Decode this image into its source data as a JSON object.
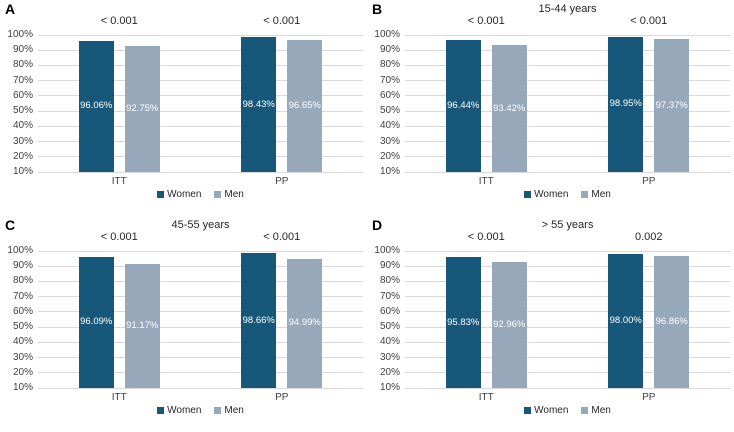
{
  "colors": {
    "women_bar": "#17587A",
    "men_bar": "#96A8BA",
    "gridline": "#D9D9D9",
    "axis_text": "#404040",
    "annotation_text": "#262626",
    "bar_label_text": "#FFFFFF",
    "panel_letter": "#000000"
  },
  "y_axis": {
    "tick_labels": [
      "100%",
      "90%",
      "80%",
      "70%",
      "60%",
      "50%",
      "40%",
      "30%",
      "20%",
      "10%"
    ],
    "min": 10,
    "max": 100
  },
  "legend": {
    "items": [
      {
        "label": "Women",
        "color": "#17587A"
      },
      {
        "label": "Men",
        "color": "#96A8BA"
      }
    ]
  },
  "chart_data": [
    {
      "type": "bar",
      "panel": "A",
      "title": "",
      "categories": [
        "ITT",
        "PP"
      ],
      "series": [
        {
          "name": "Women",
          "color": "#17587A",
          "values": [
            96.06,
            98.43
          ],
          "data_labels": [
            "96.06%",
            "98.43%"
          ]
        },
        {
          "name": "Men",
          "color": "#96A8BA",
          "values": [
            92.75,
            96.65
          ],
          "data_labels": [
            "92.75%",
            "96.65%"
          ]
        }
      ],
      "p_value_annotations": [
        "< 0.001",
        "< 0.001"
      ],
      "ylim": [
        10,
        100
      ],
      "xlabel": "",
      "ylabel": "",
      "grid": true,
      "legend_position": "bottom"
    },
    {
      "type": "bar",
      "panel": "B",
      "title": "15-44 years",
      "categories": [
        "ITT",
        "PP"
      ],
      "series": [
        {
          "name": "Women",
          "color": "#17587A",
          "values": [
            96.44,
            98.95
          ],
          "data_labels": [
            "96.44%",
            "98.95%"
          ]
        },
        {
          "name": "Men",
          "color": "#96A8BA",
          "values": [
            93.42,
            97.37
          ],
          "data_labels": [
            "93.42%",
            "97.37%"
          ]
        }
      ],
      "p_value_annotations": [
        "< 0.001",
        "< 0.001"
      ],
      "ylim": [
        10,
        100
      ],
      "xlabel": "",
      "ylabel": "",
      "grid": true,
      "legend_position": "bottom"
    },
    {
      "type": "bar",
      "panel": "C",
      "title": "45-55 years",
      "categories": [
        "ITT",
        "PP"
      ],
      "series": [
        {
          "name": "Women",
          "color": "#17587A",
          "values": [
            96.09,
            98.66
          ],
          "data_labels": [
            "96.09%",
            "98.66%"
          ]
        },
        {
          "name": "Men",
          "color": "#96A8BA",
          "values": [
            91.17,
            94.99
          ],
          "data_labels": [
            "91.17%",
            "94.99%"
          ]
        }
      ],
      "p_value_annotations": [
        "< 0.001",
        "< 0.001"
      ],
      "ylim": [
        10,
        100
      ],
      "xlabel": "",
      "ylabel": "",
      "grid": true,
      "legend_position": "bottom"
    },
    {
      "type": "bar",
      "panel": "D",
      "title": "> 55 years",
      "categories": [
        "ITT",
        "PP"
      ],
      "series": [
        {
          "name": "Women",
          "color": "#17587A",
          "values": [
            95.83,
            98.0
          ],
          "data_labels": [
            "95.83%",
            "98.00%"
          ]
        },
        {
          "name": "Men",
          "color": "#96A8BA",
          "values": [
            92.96,
            96.86
          ],
          "data_labels": [
            "92.96%",
            "96.86%"
          ]
        }
      ],
      "p_value_annotations": [
        "< 0.001",
        "0.002"
      ],
      "ylim": [
        10,
        100
      ],
      "xlabel": "",
      "ylabel": "",
      "grid": true,
      "legend_position": "bottom"
    }
  ]
}
